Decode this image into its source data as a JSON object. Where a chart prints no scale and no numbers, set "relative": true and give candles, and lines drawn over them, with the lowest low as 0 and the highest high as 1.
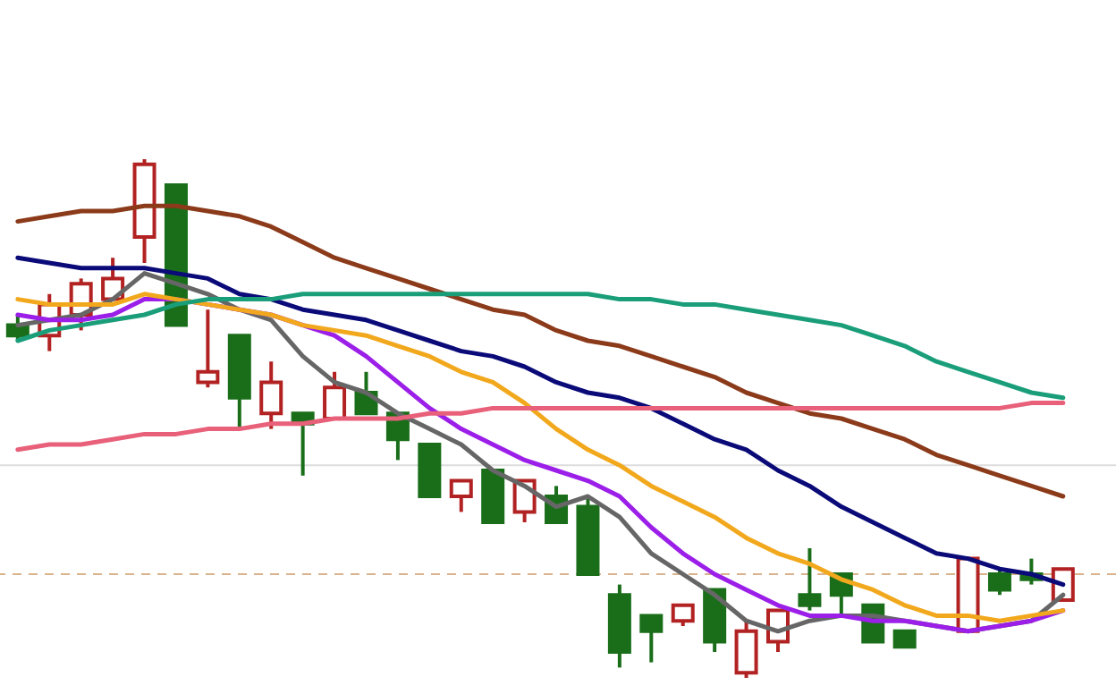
{
  "chart_data": {
    "type": "candlestick",
    "relative": true,
    "categories": [
      null,
      null,
      null,
      null,
      null,
      null,
      null,
      null,
      null,
      null,
      null,
      null,
      null,
      null,
      null,
      null,
      null,
      null,
      null,
      null,
      null,
      null,
      null,
      null,
      null,
      null,
      null,
      null,
      null,
      null,
      null,
      null,
      null,
      null
    ],
    "ohlc": [
      [
        0.68,
        0.7,
        0.65,
        0.66
      ],
      [
        0.66,
        0.74,
        0.63,
        0.72
      ],
      [
        0.7,
        0.77,
        0.67,
        0.76
      ],
      [
        0.73,
        0.81,
        0.73,
        0.77
      ],
      [
        0.85,
        1,
        0.8,
        0.99
      ],
      [
        0.95,
        0.95,
        0.68,
        0.68
      ],
      [
        0.57,
        0.71,
        0.56,
        0.59
      ],
      [
        0.66,
        0.66,
        0.48,
        0.54
      ],
      [
        0.51,
        0.61,
        0.48,
        0.57
      ],
      [
        0.51,
        0.51,
        0.39,
        0.49
      ],
      [
        0.5,
        0.59,
        0.5,
        0.56
      ],
      [
        0.55,
        0.59,
        0.51,
        0.51
      ],
      [
        0.51,
        0.51,
        0.42,
        0.46
      ],
      [
        0.45,
        0.45,
        0.35,
        0.35
      ],
      [
        0.35,
        0.38,
        0.32,
        0.38
      ],
      [
        0.4,
        0.4,
        0.3,
        0.3
      ],
      [
        0.32,
        0.38,
        0.3,
        0.38
      ],
      [
        0.35,
        0.37,
        0.3,
        0.3
      ],
      [
        0.33,
        0.35,
        0.2,
        0.2
      ],
      [
        0.16,
        0.18,
        0.02,
        0.05
      ],
      [
        0.12,
        0.12,
        0.03,
        0.09
      ],
      [
        0.11,
        0.14,
        0.1,
        0.14
      ],
      [
        0.17,
        0.17,
        0.05,
        0.07
      ],
      [
        0.01,
        0.11,
        0,
        0.09
      ],
      [
        0.07,
        0.13,
        0.05,
        0.13
      ],
      [
        0.16,
        0.25,
        0.13,
        0.14
      ],
      [
        0.2,
        0.2,
        0.12,
        0.16
      ],
      [
        0.14,
        0.14,
        0.07,
        0.07
      ],
      [
        0.09,
        0.09,
        0.06,
        0.06
      ],
      null,
      [
        0.09,
        0.23,
        0.09,
        0.23
      ],
      [
        0.2,
        0.21,
        0.16,
        0.17
      ],
      [
        0.2,
        0.23,
        0.18,
        0.19
      ],
      [
        0.15,
        0.21,
        0.15,
        0.21
      ]
    ],
    "colors": [
      "#1a6e1a",
      "#b22222",
      "#b22222",
      "#b22222",
      "#b22222",
      "#1a6e1a",
      "#b22222",
      "#1a6e1a",
      "#b22222",
      "#1a6e1a",
      "#b22222",
      "#1a6e1a",
      "#1a6e1a",
      "#1a6e1a",
      "#b22222",
      "#1a6e1a",
      "#b22222",
      "#1a6e1a",
      "#1a6e1a",
      "#1a6e1a",
      "#1a6e1a",
      "#b22222",
      "#1a6e1a",
      "#b22222",
      "#b22222",
      "#1a6e1a",
      "#1a6e1a",
      "#1a6e1a",
      "#1a6e1a",
      null,
      "#b22222",
      "#1a6e1a",
      "#1a6e1a",
      "#b22222"
    ],
    "series": [
      {
        "type": "line",
        "color": "#666666",
        "values": [
          0.68,
          0.69,
          0.7,
          0.73,
          0.78,
          0.76,
          0.74,
          0.71,
          0.69,
          0.62,
          0.57,
          0.55,
          0.51,
          0.48,
          0.45,
          0.4,
          0.37,
          0.33,
          0.35,
          0.31,
          0.24,
          0.2,
          0.16,
          0.11,
          0.09,
          0.11,
          0.12,
          0.12,
          0.11,
          0.1,
          0.09,
          0.1,
          0.11,
          0.16
        ]
      },
      {
        "type": "line",
        "color": "#9b1fe8",
        "values": [
          0.7,
          0.69,
          0.69,
          0.7,
          0.73,
          0.73,
          0.72,
          0.71,
          0.7,
          0.68,
          0.66,
          0.62,
          0.57,
          0.52,
          0.48,
          0.45,
          0.42,
          0.4,
          0.38,
          0.35,
          0.29,
          0.24,
          0.2,
          0.17,
          0.14,
          0.12,
          0.12,
          0.11,
          0.11,
          0.1,
          0.09,
          0.1,
          0.11,
          0.13
        ]
      },
      {
        "type": "line",
        "color": "#f2a81d",
        "values": [
          0.73,
          0.72,
          0.72,
          0.72,
          0.74,
          0.73,
          0.72,
          0.71,
          0.7,
          0.68,
          0.67,
          0.66,
          0.64,
          0.62,
          0.59,
          0.57,
          0.53,
          0.48,
          0.44,
          0.41,
          0.37,
          0.34,
          0.31,
          0.27,
          0.24,
          0.22,
          0.19,
          0.17,
          0.14,
          0.12,
          0.12,
          0.11,
          0.12,
          0.13
        ]
      },
      {
        "type": "line",
        "color": "#0a0a78",
        "values": [
          0.81,
          0.8,
          0.79,
          0.79,
          0.79,
          0.78,
          0.77,
          0.74,
          0.73,
          0.71,
          0.7,
          0.69,
          0.67,
          0.65,
          0.63,
          0.62,
          0.6,
          0.57,
          0.55,
          0.54,
          0.52,
          0.49,
          0.46,
          0.44,
          0.4,
          0.37,
          0.33,
          0.3,
          0.27,
          0.24,
          0.23,
          0.21,
          0.2,
          0.18
        ]
      },
      {
        "type": "line",
        "color": "#8b3a1a",
        "values": [
          0.88,
          0.89,
          0.9,
          0.9,
          0.91,
          0.91,
          0.9,
          0.89,
          0.87,
          0.84,
          0.81,
          0.79,
          0.77,
          0.75,
          0.73,
          0.71,
          0.7,
          0.67,
          0.65,
          0.64,
          0.62,
          0.6,
          0.58,
          0.55,
          0.53,
          0.51,
          0.5,
          0.48,
          0.46,
          0.43,
          0.41,
          0.39,
          0.37,
          0.35
        ]
      },
      {
        "type": "line",
        "color": "#1a9e7a",
        "values": [
          0.65,
          0.67,
          0.68,
          0.69,
          0.7,
          0.72,
          0.73,
          0.73,
          0.73,
          0.74,
          0.74,
          0.74,
          0.74,
          0.74,
          0.74,
          0.74,
          0.74,
          0.74,
          0.74,
          0.73,
          0.73,
          0.72,
          0.72,
          0.71,
          0.7,
          0.69,
          0.68,
          0.66,
          0.64,
          0.61,
          0.59,
          0.57,
          0.55,
          0.54
        ]
      },
      {
        "type": "line",
        "color": "#e8607a",
        "values": [
          0.44,
          0.45,
          0.45,
          0.46,
          0.47,
          0.47,
          0.48,
          0.48,
          0.49,
          0.49,
          0.5,
          0.5,
          0.5,
          0.51,
          0.51,
          0.52,
          0.52,
          0.52,
          0.52,
          0.52,
          0.52,
          0.52,
          0.52,
          0.52,
          0.52,
          0.52,
          0.52,
          0.52,
          0.52,
          0.52,
          0.52,
          0.52,
          0.53,
          0.53
        ]
      }
    ],
    "ref_lines": [
      {
        "axis": "y",
        "value": 0.2,
        "color": "#d9b38c",
        "line_style": "dashed"
      },
      {
        "axis": "y",
        "value": 0.41,
        "color": "#dddddd",
        "line_style": "solid"
      }
    ]
  }
}
